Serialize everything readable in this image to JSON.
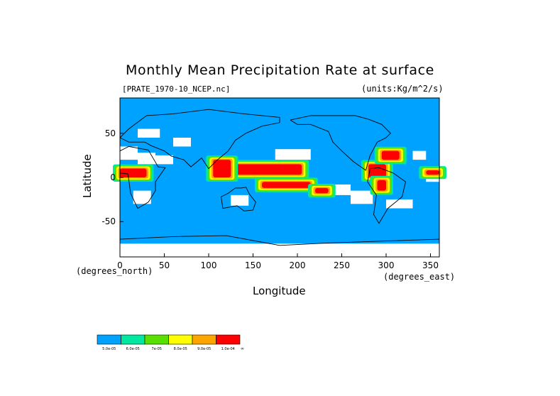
{
  "chart_data": {
    "type": "heatmap",
    "title": "Monthly Mean Precipitation Rate at surface",
    "file_label": "[PRATE_1970-10_NCEP.nc]",
    "units_label": "(units:Kg/m^2/s)",
    "xlabel": "Longitude",
    "ylabel": "Latitude",
    "x_unit_label": "(degrees_east)",
    "y_unit_label": "(degrees_north)",
    "xlim": [
      0,
      360
    ],
    "ylim": [
      -90,
      90
    ],
    "x_ticks": [
      0,
      50,
      100,
      150,
      200,
      250,
      300,
      350
    ],
    "y_ticks": [
      50,
      0,
      -50
    ],
    "x_tick_labels": [
      "0",
      "50",
      "100",
      "150",
      "200",
      "250",
      "300",
      "350"
    ],
    "y_tick_labels": [
      "50",
      "0",
      "-50"
    ],
    "colorbar": {
      "levels": [
        {
          "label": "5.0e-05",
          "color": "#00a2ff"
        },
        {
          "label": "6.0e-05",
          "color": "#00e8a0"
        },
        {
          "label": "7e-05",
          "color": "#5ae000"
        },
        {
          "label": "8.0e-05",
          "color": "#ffff00"
        },
        {
          "label": "9.0e-05",
          "color": "#ffa500"
        },
        {
          "label": "1.0e-04",
          "color": "#ff0000"
        }
      ],
      "end_label": "∞",
      "below_color": "#ffffff"
    },
    "regions": [
      {
        "level": 5,
        "lon": [
          120,
          205
        ],
        "lat": [
          3,
          15
        ]
      },
      {
        "level": 5,
        "lon": [
          160,
          215
        ],
        "lat": [
          -12,
          -5
        ]
      },
      {
        "level": 5,
        "lon": [
          105,
          125
        ],
        "lat": [
          0,
          20
        ]
      },
      {
        "level": 5,
        "lon": [
          0,
          30
        ],
        "lat": [
          0,
          10
        ]
      },
      {
        "level": 5,
        "lon": [
          280,
          300
        ],
        "lat": [
          0,
          15
        ]
      },
      {
        "level": 5,
        "lon": [
          295,
          315
        ],
        "lat": [
          20,
          30
        ]
      },
      {
        "level": 5,
        "lon": [
          290,
          300
        ],
        "lat": [
          -15,
          -3
        ]
      },
      {
        "level": 5,
        "lon": [
          345,
          360
        ],
        "lat": [
          3,
          8
        ]
      },
      {
        "level": 5,
        "lon": [
          220,
          235
        ],
        "lat": [
          -18,
          -12
        ]
      }
    ]
  }
}
